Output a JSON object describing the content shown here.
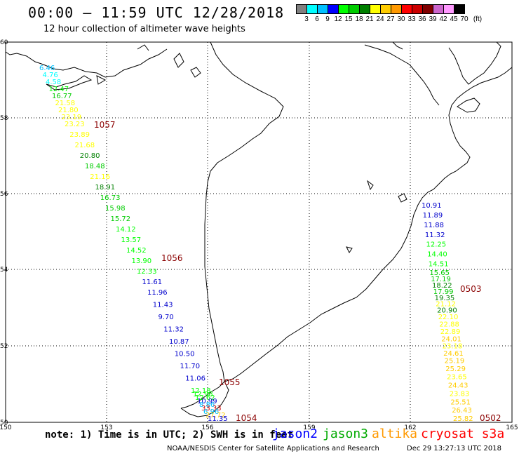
{
  "header": {
    "title": "00:00 – 11:59 UTC 12/28/2018",
    "subtitle": "12 hour collection of altimeter wave heights"
  },
  "legend": {
    "unit": "(ft)",
    "colors": [
      "#808080",
      "#00ffff",
      "#00c0ff",
      "#0000ff",
      "#00ff00",
      "#00cc00",
      "#008000",
      "#ffff00",
      "#ffcc00",
      "#ff9900",
      "#ff0000",
      "#cc0000",
      "#800000",
      "#cc66cc",
      "#ff99ff",
      "#000000"
    ],
    "labels": [
      "3",
      "6",
      "9",
      "12",
      "15",
      "18",
      "21",
      "24",
      "27",
      "30",
      "33",
      "36",
      "39",
      "42",
      "45",
      "70"
    ]
  },
  "axes": {
    "lon_labels": [
      "150",
      "153",
      "156",
      "159",
      "162",
      "165"
    ],
    "lat_labels": [
      "60",
      "58",
      "56",
      "54",
      "52",
      "50"
    ]
  },
  "tracks": {
    "west": [
      {
        "v": "6.46",
        "c": "#00c0ff"
      },
      {
        "v": "4.76",
        "c": "#00ffff"
      },
      {
        "v": "4.58",
        "c": "#00ffff"
      },
      {
        "v": "12.47",
        "c": "#00ff00"
      },
      {
        "v": "16.77",
        "c": "#00cc00"
      },
      {
        "v": "21.58",
        "c": "#ffff00"
      },
      {
        "v": "21.80",
        "c": "#ffff00"
      },
      {
        "v": "23.19",
        "c": "#ffff00"
      },
      {
        "v": "23.23",
        "c": "#ffff00"
      },
      {
        "v": "23.89",
        "c": "#ffff00"
      },
      {
        "v": "21.68",
        "c": "#ffff00"
      },
      {
        "v": "20.80",
        "c": "#008000"
      },
      {
        "v": "18.48",
        "c": "#00cc00"
      },
      {
        "v": "21.16",
        "c": "#ffff00"
      },
      {
        "v": "18.91",
        "c": "#008000"
      },
      {
        "v": "16.73",
        "c": "#00cc00"
      },
      {
        "v": "15.98",
        "c": "#00cc00"
      },
      {
        "v": "15.72",
        "c": "#00cc00"
      },
      {
        "v": "14.12",
        "c": "#00ff00"
      },
      {
        "v": "13.57",
        "c": "#00ff00"
      },
      {
        "v": "14.52",
        "c": "#00ff00"
      },
      {
        "v": "13.90",
        "c": "#00ff00"
      },
      {
        "v": "12.33",
        "c": "#00ff00"
      },
      {
        "v": "11.61",
        "c": "#0000cc"
      },
      {
        "v": "11.96",
        "c": "#0000cc"
      },
      {
        "v": "11.43",
        "c": "#0000cc"
      },
      {
        "v": "9.70",
        "c": "#0000cc"
      },
      {
        "v": "11.32",
        "c": "#0000cc"
      },
      {
        "v": "10.87",
        "c": "#0000cc"
      },
      {
        "v": "10.50",
        "c": "#0000cc"
      },
      {
        "v": "11.70",
        "c": "#0000cc"
      },
      {
        "v": "11.06",
        "c": "#0000cc"
      },
      {
        "v": "12.18",
        "c": "#00ff00"
      },
      {
        "v": "12.98",
        "c": "#00ff00"
      },
      {
        "v": "12.62",
        "c": "#00ff00"
      },
      {
        "v": "10.99",
        "c": "#0000cc"
      },
      {
        "v": "8.86",
        "c": "#00c0ff"
      },
      {
        "v": "33.33",
        "c": "#cc0000"
      },
      {
        "v": "6.96",
        "c": "#00c0ff"
      },
      {
        "v": "27.72",
        "c": "#ffcc00"
      },
      {
        "v": "11.35",
        "c": "#0000cc"
      }
    ],
    "east": [
      {
        "v": "10.91",
        "c": "#0000cc"
      },
      {
        "v": "11.89",
        "c": "#0000cc"
      },
      {
        "v": "11.88",
        "c": "#0000cc"
      },
      {
        "v": "11.32",
        "c": "#0000cc"
      },
      {
        "v": "12.25",
        "c": "#00ff00"
      },
      {
        "v": "14.40",
        "c": "#00ff00"
      },
      {
        "v": "14.51",
        "c": "#00ff00"
      },
      {
        "v": "15.65",
        "c": "#00cc00"
      },
      {
        "v": "17.19",
        "c": "#00cc00"
      },
      {
        "v": "18.22",
        "c": "#008000"
      },
      {
        "v": "17.99",
        "c": "#00cc00"
      },
      {
        "v": "19.35",
        "c": "#008000"
      },
      {
        "v": "21.12",
        "c": "#ffff00"
      },
      {
        "v": "20.90",
        "c": "#008000"
      },
      {
        "v": "22.10",
        "c": "#ffff00"
      },
      {
        "v": "22.88",
        "c": "#ffff00"
      },
      {
        "v": "22.89",
        "c": "#ffff00"
      },
      {
        "v": "24.01",
        "c": "#ffcc00"
      },
      {
        "v": "23.18",
        "c": "#ffff00"
      },
      {
        "v": "24.61",
        "c": "#ffcc00"
      },
      {
        "v": "25.19",
        "c": "#ffcc00"
      },
      {
        "v": "25.29",
        "c": "#ffcc00"
      },
      {
        "v": "23.65",
        "c": "#ffff00"
      },
      {
        "v": "24.43",
        "c": "#ffcc00"
      },
      {
        "v": "23.83",
        "c": "#ffff00"
      },
      {
        "v": "25.51",
        "c": "#ffcc00"
      },
      {
        "v": "26.43",
        "c": "#ffcc00"
      },
      {
        "v": "25.82",
        "c": "#ffcc00"
      }
    ]
  },
  "pass_labels": [
    {
      "id": "1057",
      "c": "#8b0000"
    },
    {
      "id": "1056",
      "c": "#8b0000"
    },
    {
      "id": "1055",
      "c": "#8b0000"
    },
    {
      "id": "1054",
      "c": "#8b0000"
    },
    {
      "id": "0503",
      "c": "#ff0000"
    },
    {
      "id": "0502",
      "c": "#ff0000"
    }
  ],
  "footer": {
    "note": "note: 1) Time is in UTC; 2) SWH is in feet",
    "satellites": [
      {
        "name": "jason2",
        "color": "#0000ff"
      },
      {
        "name": "jason3",
        "color": "#00aa00"
      },
      {
        "name": "altika",
        "color": "#ff9900"
      },
      {
        "name": "cryosat s3a",
        "color": "#ff0000"
      }
    ],
    "credit": "NOAA/NESDIS Center for Satellite Applications and Research",
    "timestamp": "Dec 29 13:27:13 UTC 2018"
  }
}
